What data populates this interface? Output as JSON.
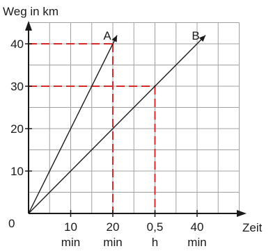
{
  "chart_data": {
    "type": "line",
    "ylabel": "Weg in km",
    "xlabel": "Zeit",
    "origin_label": "0",
    "xlim_minutes": [
      0,
      50
    ],
    "ylim_km": [
      0,
      45
    ],
    "x_ticks": [
      {
        "value": 10,
        "line1": "10",
        "line2": "min"
      },
      {
        "value": 20,
        "line1": "20",
        "line2": "min"
      },
      {
        "value": 30,
        "line1": "0,5",
        "line2": "h"
      },
      {
        "value": 40,
        "line1": "40",
        "line2": "min"
      }
    ],
    "y_ticks": [
      {
        "value": 10,
        "label": "10"
      },
      {
        "value": 20,
        "label": "20"
      },
      {
        "value": 30,
        "label": "30"
      },
      {
        "value": 40,
        "label": "40"
      }
    ],
    "grid": true,
    "series": [
      {
        "name": "A",
        "x": [
          0,
          20
        ],
        "y": [
          0,
          40
        ],
        "arrow_to": [
          21,
          42
        ]
      },
      {
        "name": "B",
        "x": [
          0,
          30
        ],
        "y": [
          0,
          30
        ],
        "arrow_to": [
          42,
          42
        ]
      }
    ],
    "guides": [
      {
        "series": "A",
        "x": 20,
        "y": 40
      },
      {
        "series": "B",
        "x": 30,
        "y": 30
      }
    ],
    "colors": {
      "axis": "#1a1a1a",
      "grid": "#a0a0a0",
      "guide": "#d62a2a",
      "line": "#1a1a1a"
    }
  }
}
